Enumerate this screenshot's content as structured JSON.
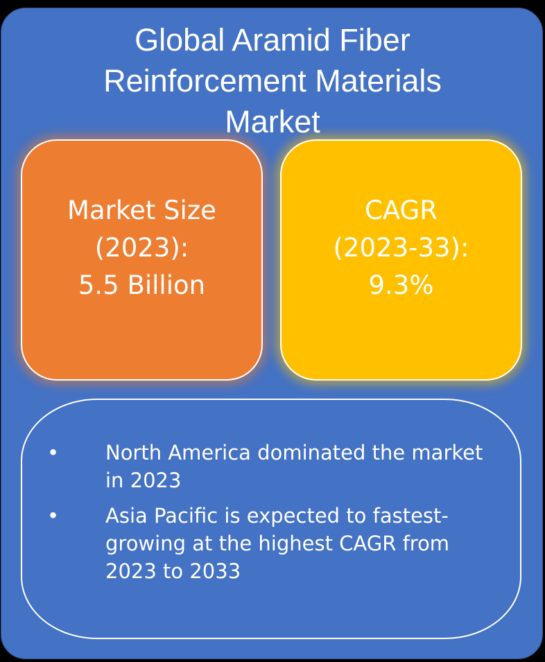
{
  "title": {
    "line1": "Global Aramid Fiber",
    "line2": "Reinforcement Materials",
    "line3": "Market"
  },
  "market_size": {
    "line1": "Market Size",
    "line2": "(2023):",
    "line3": "5.5 Billion",
    "color": "#ed7d31"
  },
  "cagr": {
    "line1": "CAGR",
    "line2": "(2023-33):",
    "line3": "9.3%",
    "color": "#ffc000"
  },
  "highlights": {
    "bullet_symbol": "•",
    "items": [
      "North America dominated the market in 2023",
      "Asia Pacific is expected to fastest-growing at the highest CAGR from 2023 to 2033"
    ]
  },
  "colors": {
    "background": "#4472c4",
    "text": "#ffffff"
  }
}
